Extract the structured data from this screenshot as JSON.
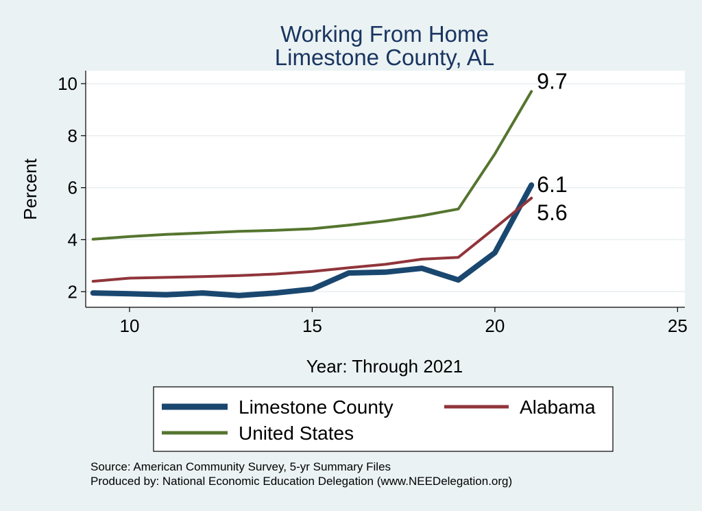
{
  "chart_data": {
    "type": "line",
    "title": "Working From Home",
    "subtitle": "Limestone County, AL",
    "xlabel": "Year: Through 2021",
    "ylabel": "Percent",
    "xlim": [
      8.8,
      25.2
    ],
    "ylim": [
      1.4,
      10.5
    ],
    "xticks": [
      10,
      15,
      20,
      25
    ],
    "yticks": [
      2,
      4,
      6,
      8,
      10
    ],
    "grid": true,
    "legend_position": "bottom",
    "series": [
      {
        "name": "Limestone County",
        "color": "#1a476f",
        "x": [
          9,
          10,
          11,
          12,
          13,
          14,
          15,
          16,
          17,
          18,
          19,
          20,
          21
        ],
        "y": [
          1.95,
          1.92,
          1.88,
          1.95,
          1.85,
          1.95,
          2.1,
          2.72,
          2.75,
          2.9,
          2.45,
          3.5,
          6.1
        ],
        "end_label": "6.1"
      },
      {
        "name": "Alabama",
        "color": "#90353b",
        "x": [
          9,
          10,
          11,
          12,
          13,
          14,
          15,
          16,
          17,
          18,
          19,
          20,
          21
        ],
        "y": [
          2.4,
          2.52,
          2.55,
          2.58,
          2.62,
          2.68,
          2.78,
          2.92,
          3.05,
          3.25,
          3.32,
          4.45,
          5.6
        ],
        "end_label": "5.6"
      },
      {
        "name": "United States",
        "color": "#55752f",
        "x": [
          9,
          10,
          11,
          12,
          13,
          14,
          15,
          16,
          17,
          18,
          19,
          20,
          21
        ],
        "y": [
          4.02,
          4.12,
          4.2,
          4.26,
          4.32,
          4.36,
          4.42,
          4.56,
          4.72,
          4.92,
          5.18,
          7.3,
          9.7
        ],
        "end_label": "9.7"
      }
    ],
    "notes": [
      "Source: American Community Survey, 5-yr Summary Files",
      "Produced by: National Economic Education Delegation (www.NEEDelegation.org)"
    ]
  }
}
